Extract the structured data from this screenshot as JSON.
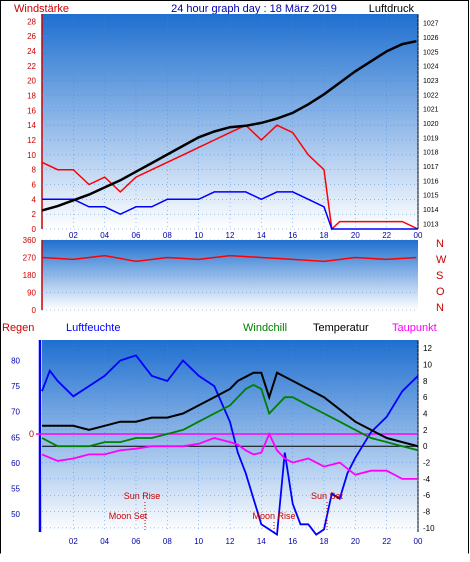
{
  "header": {
    "left_label": "Windstärke",
    "title": "24 hour graph day : 18 März 2019",
    "right_label": "Luftdruck"
  },
  "colors": {
    "panel_top": "#1e6fd0",
    "panel_bottom": "#ffffff",
    "wind_gust": "#ff0000",
    "wind_avg": "#0000ff",
    "pressure": "#000000",
    "direction": "#ff0000",
    "humidity": "#0000ff",
    "windchill": "#008000",
    "temperature": "#000000",
    "dewpoint": "#ff00ff",
    "rain": "#0000ff",
    "sun_moon": "#cc0000"
  },
  "chart_data": [
    {
      "type": "line",
      "name": "wind-pressure",
      "x_ticks": [
        "02",
        "04",
        "06",
        "08",
        "10",
        "12",
        "14",
        "16",
        "18",
        "20",
        "22",
        "00"
      ],
      "xlim": [
        0,
        24
      ],
      "left_axis": {
        "label": "Windstärke",
        "ticks": [
          0,
          2,
          4,
          6,
          8,
          10,
          12,
          14,
          16,
          18,
          20,
          22,
          24,
          26,
          28
        ],
        "ylim": [
          0,
          29
        ]
      },
      "right_axis": {
        "label": "Luftdruck",
        "ticks": [
          1013,
          1014,
          1015,
          1016,
          1017,
          1018,
          1019,
          1020,
          1021,
          1022,
          1023,
          1024,
          1025,
          1026,
          1027
        ],
        "ylim": [
          1012.6,
          1027.6
        ]
      },
      "series": [
        {
          "axis": "right",
          "x": [
            0,
            1,
            2,
            3,
            4,
            5,
            6,
            7,
            8,
            9,
            10,
            11,
            12,
            13,
            14,
            15,
            16,
            17,
            18,
            19,
            20,
            21,
            22,
            23,
            23.9
          ],
          "values": [
            1013.9,
            1014.2,
            1014.6,
            1015.0,
            1015.5,
            1016.0,
            1016.6,
            1017.2,
            1017.8,
            1018.4,
            1019.0,
            1019.4,
            1019.7,
            1019.8,
            1020.0,
            1020.3,
            1020.7,
            1021.3,
            1022.0,
            1022.8,
            1023.6,
            1024.3,
            1025.0,
            1025.5,
            1025.7
          ]
        },
        {
          "axis": "left",
          "x": [
            0,
            1,
            2,
            3,
            4,
            5,
            6,
            7,
            8,
            9,
            10,
            11,
            12,
            13,
            14,
            15,
            16,
            17,
            18,
            18.5,
            19,
            20,
            21,
            22,
            23,
            24
          ],
          "values": [
            9,
            8,
            8,
            6,
            7,
            5,
            7,
            8,
            9,
            10,
            11,
            12,
            13,
            14,
            12,
            14,
            13,
            10,
            8,
            0,
            1,
            1,
            1,
            1,
            1,
            0
          ]
        },
        {
          "axis": "left",
          "x": [
            0,
            1,
            2,
            3,
            4,
            5,
            6,
            7,
            8,
            9,
            10,
            11,
            12,
            13,
            14,
            15,
            16,
            17,
            18,
            18.5,
            19,
            20,
            21,
            22,
            23,
            24
          ],
          "values": [
            4,
            4,
            4,
            3,
            3,
            2,
            3,
            3,
            4,
            4,
            4,
            5,
            5,
            5,
            4,
            5,
            5,
            4,
            3,
            0,
            0,
            0,
            0,
            0,
            0,
            0
          ]
        }
      ]
    },
    {
      "type": "line",
      "name": "wind-direction",
      "xlim": [
        0,
        24
      ],
      "left_axis": {
        "ticks": [
          0,
          90,
          180,
          270,
          360
        ],
        "ylim": [
          0,
          360
        ]
      },
      "right_axis": {
        "ticks": [
          "N",
          "W",
          "S",
          "O",
          "N"
        ]
      },
      "series": [
        {
          "x": [
            0,
            2,
            4,
            6,
            8,
            10,
            12,
            14,
            16,
            18,
            20,
            22,
            23.9
          ],
          "values": [
            270,
            260,
            280,
            250,
            270,
            260,
            280,
            270,
            260,
            250,
            270,
            260,
            270
          ]
        }
      ]
    },
    {
      "type": "line",
      "name": "climate",
      "x_ticks": [
        "02",
        "04",
        "06",
        "08",
        "10",
        "12",
        "14",
        "16",
        "18",
        "20",
        "22",
        "00"
      ],
      "xlim": [
        0,
        24
      ],
      "legend": [
        "Regen",
        "Luftfeuchte",
        "Windchill",
        "Temperatur",
        "Taupunkt"
      ],
      "left_axis": {
        "ticks": [
          50,
          55,
          60,
          65,
          70,
          75,
          80
        ],
        "ylim": [
          46.5,
          84
        ]
      },
      "rain_axis": {
        "ticks": [
          "0"
        ]
      },
      "right_axis": {
        "ticks": [
          -10,
          -8,
          -6,
          -4,
          -2,
          0,
          2,
          4,
          6,
          8,
          10,
          12
        ],
        "ylim": [
          -10.5,
          13
        ]
      },
      "series": [
        {
          "axis": "left",
          "x": [
            0,
            0.5,
            1,
            2,
            3,
            4,
            5,
            6,
            7,
            8,
            9,
            10,
            11,
            12,
            12.5,
            13,
            13.5,
            14,
            14.5,
            15,
            15.5,
            16,
            16.5,
            17,
            17.5,
            18,
            18.5,
            19,
            19.5,
            20,
            21,
            22,
            23,
            24
          ],
          "values": [
            74,
            78,
            76,
            73,
            75,
            77,
            80,
            81,
            77,
            76,
            80,
            77,
            75,
            68,
            62,
            58,
            53,
            48,
            47,
            46,
            62,
            52,
            48,
            48,
            46,
            47,
            54,
            53,
            58,
            61,
            66,
            69,
            74,
            77
          ]
        },
        {
          "axis": "right",
          "x": [
            0,
            1,
            2,
            3,
            4,
            5,
            6,
            7,
            8,
            9,
            10,
            11,
            12,
            12.5,
            13,
            13.5,
            14,
            14.5,
            15,
            15.5,
            16,
            17,
            18,
            19,
            20,
            21,
            22,
            23,
            24
          ],
          "values": [
            1,
            0,
            0,
            0,
            0.5,
            0.5,
            1,
            1,
            1.5,
            2,
            3,
            4,
            5,
            6,
            7,
            7.5,
            7,
            4,
            5,
            6,
            6,
            5,
            4,
            3,
            2,
            1,
            0.5,
            0,
            -0.5
          ]
        },
        {
          "axis": "right",
          "x": [
            0,
            1,
            2,
            3,
            4,
            5,
            6,
            7,
            8,
            9,
            10,
            11,
            12,
            12.5,
            13,
            13.5,
            14,
            14.5,
            15,
            15.5,
            16,
            17,
            18,
            19,
            20,
            21,
            22,
            23,
            24
          ],
          "values": [
            2.5,
            2.5,
            2.5,
            2,
            2.5,
            3,
            3,
            3.5,
            3.5,
            4,
            5,
            6,
            7,
            8,
            8.5,
            9,
            9,
            6,
            9,
            8.5,
            8,
            7,
            6,
            4.5,
            3,
            2,
            1,
            0.5,
            0
          ]
        },
        {
          "axis": "right",
          "x": [
            0,
            1,
            2,
            3,
            4,
            5,
            6,
            7,
            8,
            9,
            10,
            11,
            12,
            12.5,
            13,
            13.5,
            14,
            14.5,
            15,
            15.5,
            16,
            17,
            18,
            19,
            20,
            21,
            22,
            23,
            24
          ],
          "values": [
            -1,
            -1.8,
            -1.5,
            -1,
            -1,
            -0.5,
            -0.3,
            0,
            0,
            0,
            0.3,
            1,
            0.5,
            0.2,
            -0.5,
            -1,
            -0.8,
            1.5,
            -0.5,
            -1.5,
            -2,
            -1.5,
            -2.5,
            -2,
            -3.5,
            -3,
            -3,
            -4,
            -4
          ]
        }
      ],
      "annotations": [
        "Sun Rise",
        "Moon Set",
        "Moon Rise",
        "Sun Set"
      ]
    }
  ]
}
